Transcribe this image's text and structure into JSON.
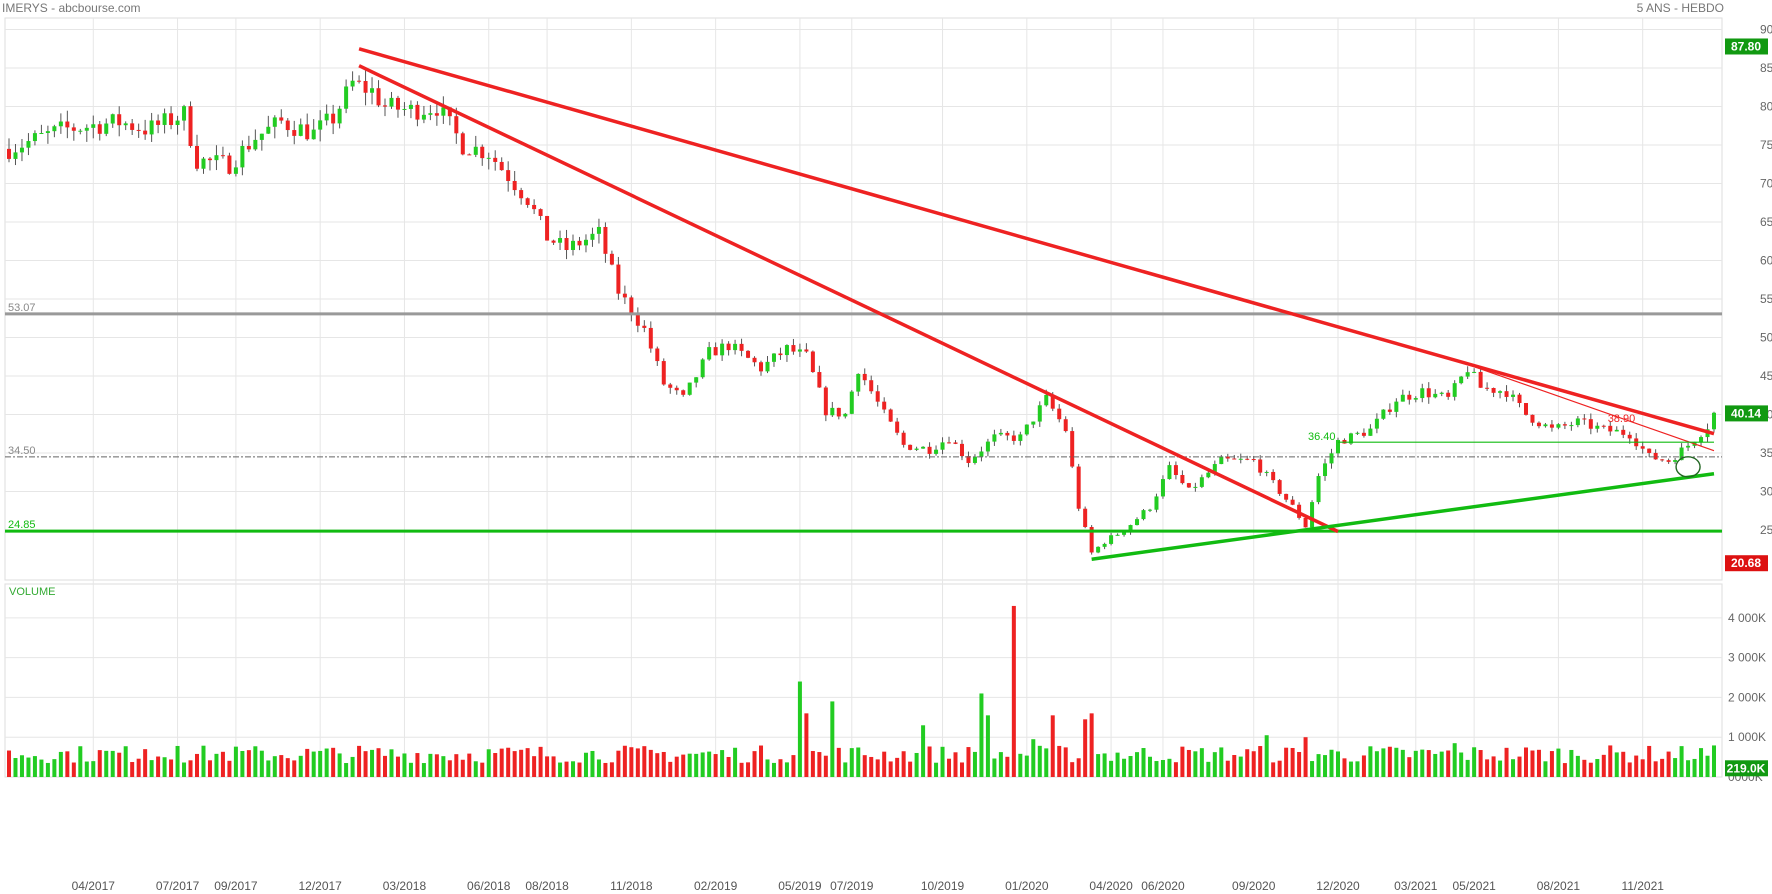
{
  "header": {
    "title": "IMERYS - abcbourse.com",
    "period": "5 ANS - HEBDO"
  },
  "colors": {
    "up": "#22cc22",
    "down": "#ee2222",
    "resistance": "#999999",
    "support": "#11bb11",
    "tag_green": "#119911",
    "tag_red": "#dd1111",
    "grid": "#e6e6e6"
  },
  "chart_data": {
    "type": "candlestick",
    "title": "IMERYS",
    "period": "5 ANS - HEBDO",
    "ylim": [
      18.5,
      91.5
    ],
    "yticks": [
      "90.00",
      "85.00",
      "80.00",
      "75.00",
      "70.00",
      "65.00",
      "60.00",
      "55.00",
      "50.00",
      "45.00",
      "40.00",
      "35.00",
      "30.00",
      "25.00"
    ],
    "x_start": "2017-01-02",
    "x_end": "2022-01-17",
    "xticks": [
      {
        "date": "2017-04-03",
        "label": "04/2017"
      },
      {
        "date": "2017-07-03",
        "label": "07/2017"
      },
      {
        "date": "2017-09-04",
        "label": "09/2017"
      },
      {
        "date": "2017-12-04",
        "label": "12/2017"
      },
      {
        "date": "2018-03-05",
        "label": "03/2018"
      },
      {
        "date": "2018-06-04",
        "label": "06/2018"
      },
      {
        "date": "2018-08-06",
        "label": "08/2018"
      },
      {
        "date": "2018-11-05",
        "label": "11/2018"
      },
      {
        "date": "2019-02-04",
        "label": "02/2019"
      },
      {
        "date": "2019-05-06",
        "label": "05/2019"
      },
      {
        "date": "2019-07-01",
        "label": "07/2019"
      },
      {
        "date": "2019-10-07",
        "label": "10/2019"
      },
      {
        "date": "2020-01-06",
        "label": "01/2020"
      },
      {
        "date": "2020-04-06",
        "label": "04/2020"
      },
      {
        "date": "2020-06-01",
        "label": "06/2020"
      },
      {
        "date": "2020-09-07",
        "label": "09/2020"
      },
      {
        "date": "2020-12-07",
        "label": "12/2020"
      },
      {
        "date": "2021-03-01",
        "label": "03/2021"
      },
      {
        "date": "2021-05-03",
        "label": "05/2021"
      },
      {
        "date": "2021-08-02",
        "label": "08/2021"
      },
      {
        "date": "2021-11-01",
        "label": "11/2021"
      }
    ],
    "price_keypoints": [
      [
        "2017-01-02",
        74.5
      ],
      [
        "2017-03-01",
        77
      ],
      [
        "2017-05-01",
        78
      ],
      [
        "2017-06-01",
        77
      ],
      [
        "2017-07-10",
        79
      ],
      [
        "2017-07-24",
        73
      ],
      [
        "2017-08-28",
        72.5
      ],
      [
        "2017-09-25",
        76
      ],
      [
        "2017-10-23",
        78
      ],
      [
        "2017-11-27",
        76.5
      ],
      [
        "2017-12-18",
        78.5
      ],
      [
        "2018-01-08",
        83
      ],
      [
        "2018-01-29",
        82
      ],
      [
        "2018-02-12",
        80
      ],
      [
        "2018-03-12",
        79.5
      ],
      [
        "2018-04-09",
        80
      ],
      [
        "2018-05-07",
        75
      ],
      [
        "2018-06-04",
        74
      ],
      [
        "2018-06-25",
        71
      ],
      [
        "2018-07-16",
        68
      ],
      [
        "2018-08-06",
        63
      ],
      [
        "2018-08-27",
        61.5
      ],
      [
        "2018-10-01",
        63.5
      ],
      [
        "2018-10-22",
        56
      ],
      [
        "2018-11-19",
        51
      ],
      [
        "2018-12-10",
        44
      ],
      [
        "2018-12-31",
        42
      ],
      [
        "2019-01-28",
        48
      ],
      [
        "2019-02-18",
        49
      ],
      [
        "2019-03-25",
        46
      ],
      [
        "2019-04-22",
        48.5
      ],
      [
        "2019-05-13",
        47.5
      ],
      [
        "2019-06-03",
        40.5
      ],
      [
        "2019-06-24",
        40
      ],
      [
        "2019-07-08",
        46
      ],
      [
        "2019-08-05",
        40
      ],
      [
        "2019-08-26",
        36
      ],
      [
        "2019-09-23",
        35.5
      ],
      [
        "2019-10-14",
        37
      ],
      [
        "2019-11-04",
        34
      ],
      [
        "2019-12-02",
        37
      ],
      [
        "2019-12-30",
        37
      ],
      [
        "2020-01-27",
        42
      ],
      [
        "2020-02-17",
        38
      ],
      [
        "2020-03-02",
        28
      ],
      [
        "2020-03-16",
        22
      ],
      [
        "2020-03-30",
        23.5
      ],
      [
        "2020-04-20",
        25
      ],
      [
        "2020-05-18",
        28
      ],
      [
        "2020-06-08",
        33
      ],
      [
        "2020-06-29",
        30
      ],
      [
        "2020-08-03",
        34
      ],
      [
        "2020-09-07",
        34
      ],
      [
        "2020-09-28",
        31
      ],
      [
        "2020-10-19",
        28
      ],
      [
        "2020-11-02",
        25.5
      ],
      [
        "2020-11-16",
        32
      ],
      [
        "2020-12-07",
        36.5
      ],
      [
        "2021-01-11",
        38
      ],
      [
        "2021-02-08",
        42
      ],
      [
        "2021-03-08",
        43
      ],
      [
        "2021-04-05",
        42
      ],
      [
        "2021-04-26",
        46
      ],
      [
        "2021-05-10",
        43.5
      ],
      [
        "2021-06-07",
        43
      ],
      [
        "2021-06-28",
        40
      ],
      [
        "2021-07-26",
        38
      ],
      [
        "2021-08-23",
        39
      ],
      [
        "2021-09-20",
        38
      ],
      [
        "2021-10-18",
        37.5
      ],
      [
        "2021-11-08",
        34.5
      ],
      [
        "2021-11-29",
        34
      ],
      [
        "2021-12-20",
        36
      ],
      [
        "2022-01-10",
        38.5
      ],
      [
        "2022-01-17",
        40.14
      ]
    ],
    "levels": [
      {
        "label": "53.07",
        "value": 53.07,
        "role": "resistance"
      },
      {
        "label": "34.50",
        "value": 34.5,
        "role": "pivot"
      },
      {
        "label": "24.85",
        "value": 24.85,
        "role": "support"
      }
    ],
    "annotations": [
      {
        "label": "36.40",
        "value": 36.4
      },
      {
        "label": "38.90",
        "value": 38.9
      }
    ],
    "price_tags": {
      "high": "87.80",
      "last": "40.14",
      "low": "20.68"
    },
    "trendlines": [
      {
        "color": "red",
        "points": [
          [
            "2018-01-15",
            87.5
          ],
          [
            "2022-01-17",
            37.5
          ]
        ]
      },
      {
        "color": "red",
        "points": [
          [
            "2018-01-15",
            85.3
          ],
          [
            "2020-12-07",
            24.8
          ]
        ]
      },
      {
        "color": "green",
        "points": [
          [
            "2020-03-16",
            21.2
          ],
          [
            "2022-01-17",
            32.3
          ]
        ]
      },
      {
        "color": "red",
        "points": [
          [
            "2021-04-26",
            46.5
          ],
          [
            "2022-01-17",
            35.3
          ]
        ]
      },
      {
        "color": "green",
        "points": [
          [
            "2020-12-07",
            36.4
          ],
          [
            "2022-01-17",
            36.4
          ]
        ]
      }
    ],
    "volume": {
      "label": "VOLUME",
      "ylim": [
        0,
        4600
      ],
      "yticks": [
        "4 000K",
        "3 000K",
        "2 000K",
        "1 000K",
        "0000K"
      ],
      "last_tag": "219.0K",
      "spikes": [
        {
          "date": "2019-05-06",
          "value": 2400
        },
        {
          "date": "2019-05-13",
          "value": 1600
        },
        {
          "date": "2019-06-10",
          "value": 1900
        },
        {
          "date": "2019-09-16",
          "value": 1300
        },
        {
          "date": "2019-11-18",
          "value": 2100
        },
        {
          "date": "2019-11-25",
          "value": 1550
        },
        {
          "date": "2019-12-23",
          "value": 4300
        },
        {
          "date": "2020-01-13",
          "value": 950
        },
        {
          "date": "2020-02-03",
          "value": 1550
        },
        {
          "date": "2020-03-09",
          "value": 1450
        },
        {
          "date": "2020-03-16",
          "value": 1600
        },
        {
          "date": "2020-09-21",
          "value": 1050
        },
        {
          "date": "2020-11-02",
          "value": 1000
        },
        {
          "date": "2021-04-12",
          "value": 850
        },
        {
          "date": "2017-07-03",
          "value": 780
        },
        {
          "date": "2017-05-29",
          "value": 700
        }
      ]
    }
  }
}
